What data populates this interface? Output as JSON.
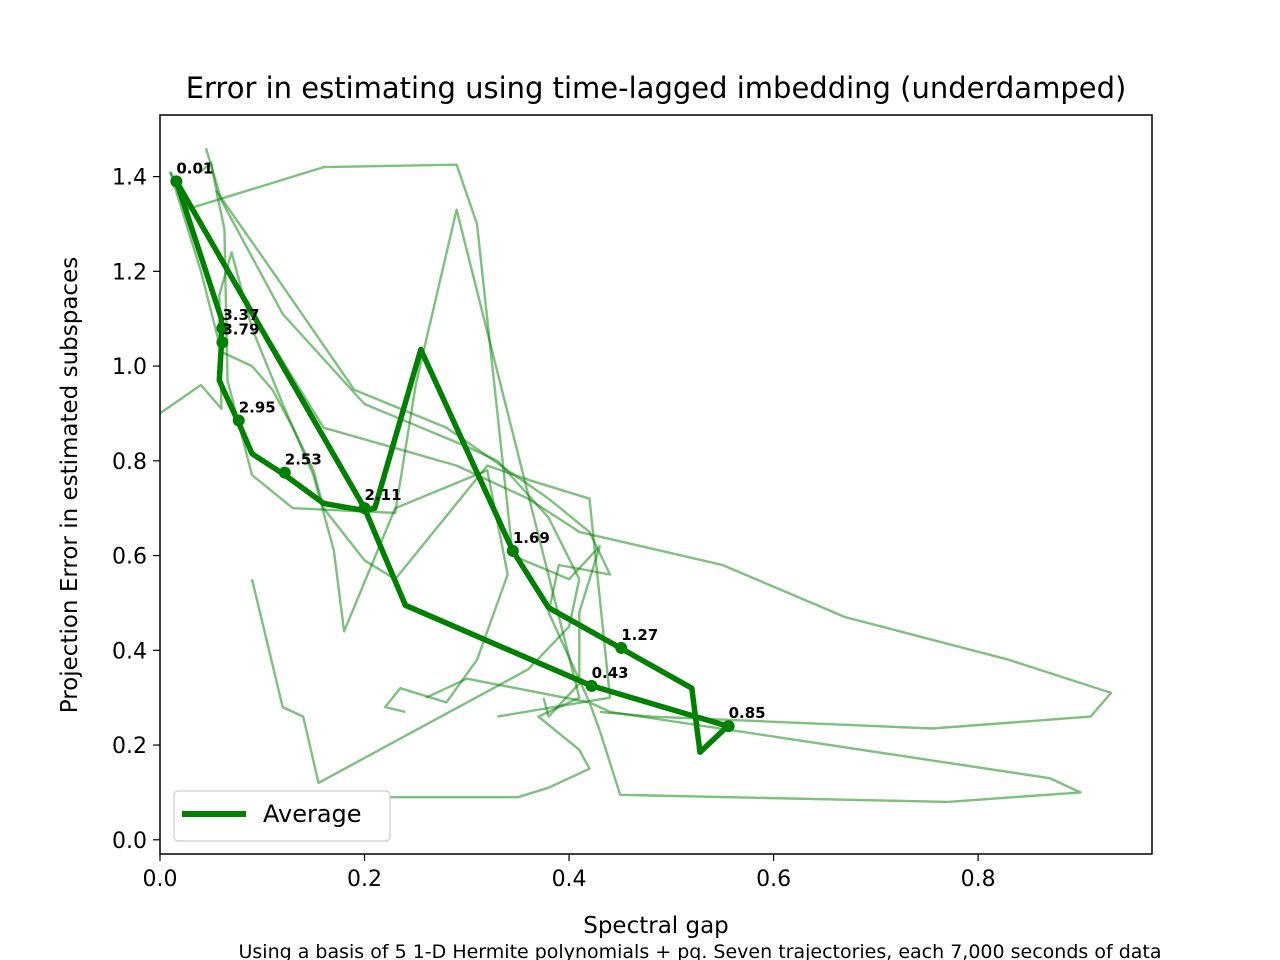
{
  "chart_data": {
    "type": "line",
    "title": "Error in estimating using time-lagged imbedding (underdamped)",
    "xlabel": "Spectral gap",
    "ylabel": "Projection Error in estimated subspaces",
    "caption": "Using a basis of 5 1-D Hermite polynomials + pq. Seven trajectories, each 7,000 seconds of data",
    "xlim": [
      0.0,
      0.97
    ],
    "ylim": [
      -0.03,
      1.53
    ],
    "xticks": [
      0.0,
      0.2,
      0.4,
      0.6,
      0.8
    ],
    "xtick_labels": [
      "0.0",
      "0.2",
      "0.4",
      "0.6",
      "0.8"
    ],
    "yticks": [
      0.0,
      0.2,
      0.4,
      0.6,
      0.8,
      1.0,
      1.2,
      1.4
    ],
    "ytick_labels": [
      "0.0",
      "0.2",
      "0.4",
      "0.6",
      "0.8",
      "1.0",
      "1.2",
      "1.4"
    ],
    "grid": false,
    "legend": {
      "placement": "lower-left",
      "entries": [
        "Average"
      ]
    },
    "average_series": {
      "name": "Average",
      "color": "#008000",
      "x": [
        0.016,
        0.06,
        0.06,
        0.058,
        0.062,
        0.077,
        0.09,
        0.122,
        0.16,
        0.2,
        0.21,
        0.255,
        0.345,
        0.38,
        0.45,
        0.52,
        0.528,
        0.555,
        0.422,
        0.24,
        0.2,
        0.016
      ],
      "y": [
        1.39,
        1.1,
        1.045,
        0.97,
        0.95,
        0.88,
        0.815,
        0.77,
        0.71,
        0.695,
        0.7,
        1.035,
        0.61,
        0.49,
        0.405,
        0.32,
        0.185,
        0.24,
        0.325,
        0.495,
        0.7,
        1.39
      ]
    },
    "annotated_points": [
      {
        "label": "0.01",
        "x": 0.016,
        "y": 1.39
      },
      {
        "label": "3.37",
        "x": 0.061,
        "y": 1.08
      },
      {
        "label": "3.79",
        "x": 0.061,
        "y": 1.05
      },
      {
        "label": "2.95",
        "x": 0.077,
        "y": 0.885
      },
      {
        "label": "2.53",
        "x": 0.122,
        "y": 0.775
      },
      {
        "label": "2.11",
        "x": 0.2,
        "y": 0.7
      },
      {
        "label": "1.69",
        "x": 0.345,
        "y": 0.61
      },
      {
        "label": "1.27",
        "x": 0.451,
        "y": 0.405
      },
      {
        "label": "0.43",
        "x": 0.422,
        "y": 0.325
      },
      {
        "label": "0.85",
        "x": 0.556,
        "y": 0.24
      }
    ],
    "trajectory_color": "#008000",
    "trajectories": [
      {
        "x": [
          0.01,
          0.08,
          0.16,
          0.29,
          0.36,
          0.41,
          0.55,
          0.67,
          0.83,
          0.93,
          0.91,
          0.755,
          0.48,
          0.43
        ],
        "y": [
          1.41,
          1.15,
          0.87,
          0.79,
          0.72,
          0.65,
          0.58,
          0.47,
          0.38,
          0.31,
          0.26,
          0.235,
          0.26,
          0.27
        ]
      },
      {
        "x": [
          0.025,
          0.16,
          0.29,
          0.31,
          0.345,
          0.4,
          0.43,
          0.41,
          0.41,
          0.38,
          0.375
        ],
        "y": [
          1.33,
          1.42,
          1.425,
          1.3,
          0.6,
          0.55,
          0.62,
          0.48,
          0.33,
          0.26,
          0.3
        ]
      },
      {
        "x": [
          0.055,
          0.11,
          0.19,
          0.28,
          0.38,
          0.42,
          0.44,
          0.39,
          0.38,
          0.42,
          0.44,
          0.87,
          0.9,
          0.77,
          0.45,
          0.43,
          0.42,
          0.3,
          0.26
        ],
        "y": [
          1.37,
          1.2,
          0.95,
          0.87,
          0.72,
          0.65,
          0.56,
          0.58,
          0.48,
          0.29,
          0.27,
          0.13,
          0.1,
          0.08,
          0.095,
          0.23,
          0.29,
          0.34,
          0.3
        ]
      },
      {
        "x": [
          0.045,
          0.06,
          0.12,
          0.2,
          0.3,
          0.33,
          0.38,
          0.41,
          0.4,
          0.36,
          0.155,
          0.14,
          0.12,
          0.09
        ],
        "y": [
          1.46,
          1.35,
          1.11,
          0.92,
          0.83,
          0.8,
          0.68,
          0.55,
          0.45,
          0.36,
          0.12,
          0.26,
          0.28,
          0.55
        ]
      },
      {
        "x": [
          0.04,
          0.05,
          0.056,
          0.063,
          0.066,
          0.09,
          0.13,
          0.23,
          0.25,
          0.29,
          0.41,
          0.37,
          0.41,
          0.42,
          0.4,
          0.38,
          0.35,
          0.16
        ],
        "y": [
          1.41,
          1.43,
          1.36,
          1.29,
          0.97,
          0.77,
          0.7,
          0.69,
          0.96,
          1.33,
          0.3,
          0.26,
          0.19,
          0.15,
          0.13,
          0.11,
          0.09,
          0.09
        ]
      },
      {
        "x": [
          0.01,
          0.04,
          0.06,
          0.09,
          0.11,
          0.13,
          0.15,
          0.16,
          0.2,
          0.23,
          0.32,
          0.36,
          0.42,
          0.44,
          0.33
        ],
        "y": [
          1.41,
          1.2,
          1.03,
          1.0,
          0.95,
          0.87,
          0.78,
          0.7,
          0.59,
          0.55,
          0.79,
          0.76,
          0.72,
          0.3,
          0.26
        ]
      },
      {
        "x": [
          0.0,
          0.04,
          0.06,
          0.058,
          0.07,
          0.09,
          0.12,
          0.15,
          0.17,
          0.18,
          0.23,
          0.32,
          0.34,
          0.31,
          0.28,
          0.235,
          0.22,
          0.24
        ],
        "y": [
          0.9,
          0.96,
          0.91,
          1.15,
          1.24,
          1.08,
          0.92,
          0.77,
          0.61,
          0.44,
          0.7,
          0.78,
          0.56,
          0.38,
          0.29,
          0.32,
          0.28,
          0.27
        ]
      }
    ]
  }
}
